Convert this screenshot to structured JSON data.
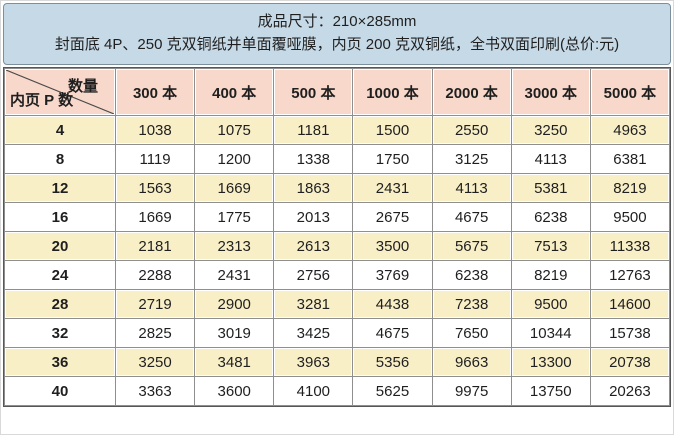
{
  "header": {
    "line1": "成品尺寸：210×285mm",
    "line2": "封面底 4P、250 克双铜纸并单面覆哑膜，内页 200 克双铜纸，全书双面印刷(总价:元)"
  },
  "table": {
    "corner_top": "数量",
    "corner_bottom": "内页 P 数",
    "columns": [
      "300 本",
      "400 本",
      "500 本",
      "1000 本",
      "2000 本",
      "3000 本",
      "5000 本"
    ],
    "rows": [
      {
        "pages": "4",
        "values": [
          "1038",
          "1075",
          "1181",
          "1500",
          "2550",
          "3250",
          "4963"
        ]
      },
      {
        "pages": "8",
        "values": [
          "1119",
          "1200",
          "1338",
          "1750",
          "3125",
          "4113",
          "6381"
        ]
      },
      {
        "pages": "12",
        "values": [
          "1563",
          "1669",
          "1863",
          "2431",
          "4113",
          "5381",
          "8219"
        ]
      },
      {
        "pages": "16",
        "values": [
          "1669",
          "1775",
          "2013",
          "2675",
          "4675",
          "6238",
          "9500"
        ]
      },
      {
        "pages": "20",
        "values": [
          "2181",
          "2313",
          "2613",
          "3500",
          "5675",
          "7513",
          "11338"
        ]
      },
      {
        "pages": "24",
        "values": [
          "2288",
          "2431",
          "2756",
          "3769",
          "6238",
          "8219",
          "12763"
        ]
      },
      {
        "pages": "28",
        "values": [
          "2719",
          "2900",
          "3281",
          "4438",
          "7238",
          "9500",
          "14600"
        ]
      },
      {
        "pages": "32",
        "values": [
          "2825",
          "3019",
          "3425",
          "4675",
          "7650",
          "10344",
          "15738"
        ]
      },
      {
        "pages": "36",
        "values": [
          "3250",
          "3481",
          "3963",
          "5356",
          "9663",
          "13300",
          "20738"
        ]
      },
      {
        "pages": "40",
        "values": [
          "3363",
          "3600",
          "4100",
          "5625",
          "9975",
          "13750",
          "20263"
        ]
      }
    ]
  },
  "colors": {
    "panel_bg": "#c6d9e6",
    "header_row_bg": "#f8d8cb",
    "row_alt_bg": "#f9efc7",
    "row_bg": "#ffffff",
    "grid_line": "#8f8f8f",
    "text": "#1f1f1f"
  },
  "chart_data": {
    "type": "table",
    "title": "成品尺寸：210×285mm",
    "subtitle": "封面底 4P、250 克双铜纸并单面覆哑膜，内页 200 克双铜纸，全书双面印刷(总价:元)",
    "row_axis_label": "内页 P 数",
    "column_axis_label": "数量",
    "columns": [
      300,
      400,
      500,
      1000,
      2000,
      3000,
      5000
    ],
    "column_unit": "本",
    "rows": [
      {
        "pages": 4,
        "prices": [
          1038,
          1075,
          1181,
          1500,
          2550,
          3250,
          4963
        ]
      },
      {
        "pages": 8,
        "prices": [
          1119,
          1200,
          1338,
          1750,
          3125,
          4113,
          6381
        ]
      },
      {
        "pages": 12,
        "prices": [
          1563,
          1669,
          1863,
          2431,
          4113,
          5381,
          8219
        ]
      },
      {
        "pages": 16,
        "prices": [
          1669,
          1775,
          2013,
          2675,
          4675,
          6238,
          9500
        ]
      },
      {
        "pages": 20,
        "prices": [
          2181,
          2313,
          2613,
          3500,
          5675,
          7513,
          11338
        ]
      },
      {
        "pages": 24,
        "prices": [
          2288,
          2431,
          2756,
          3769,
          6238,
          8219,
          12763
        ]
      },
      {
        "pages": 28,
        "prices": [
          2719,
          2900,
          3281,
          4438,
          7238,
          9500,
          14600
        ]
      },
      {
        "pages": 32,
        "prices": [
          2825,
          3019,
          3425,
          4675,
          7650,
          10344,
          15738
        ]
      },
      {
        "pages": 36,
        "prices": [
          3250,
          3481,
          3963,
          5356,
          9663,
          13300,
          20738
        ]
      },
      {
        "pages": 40,
        "prices": [
          3363,
          3600,
          4100,
          5625,
          9975,
          13750,
          20263
        ]
      }
    ],
    "value_unit": "元"
  }
}
